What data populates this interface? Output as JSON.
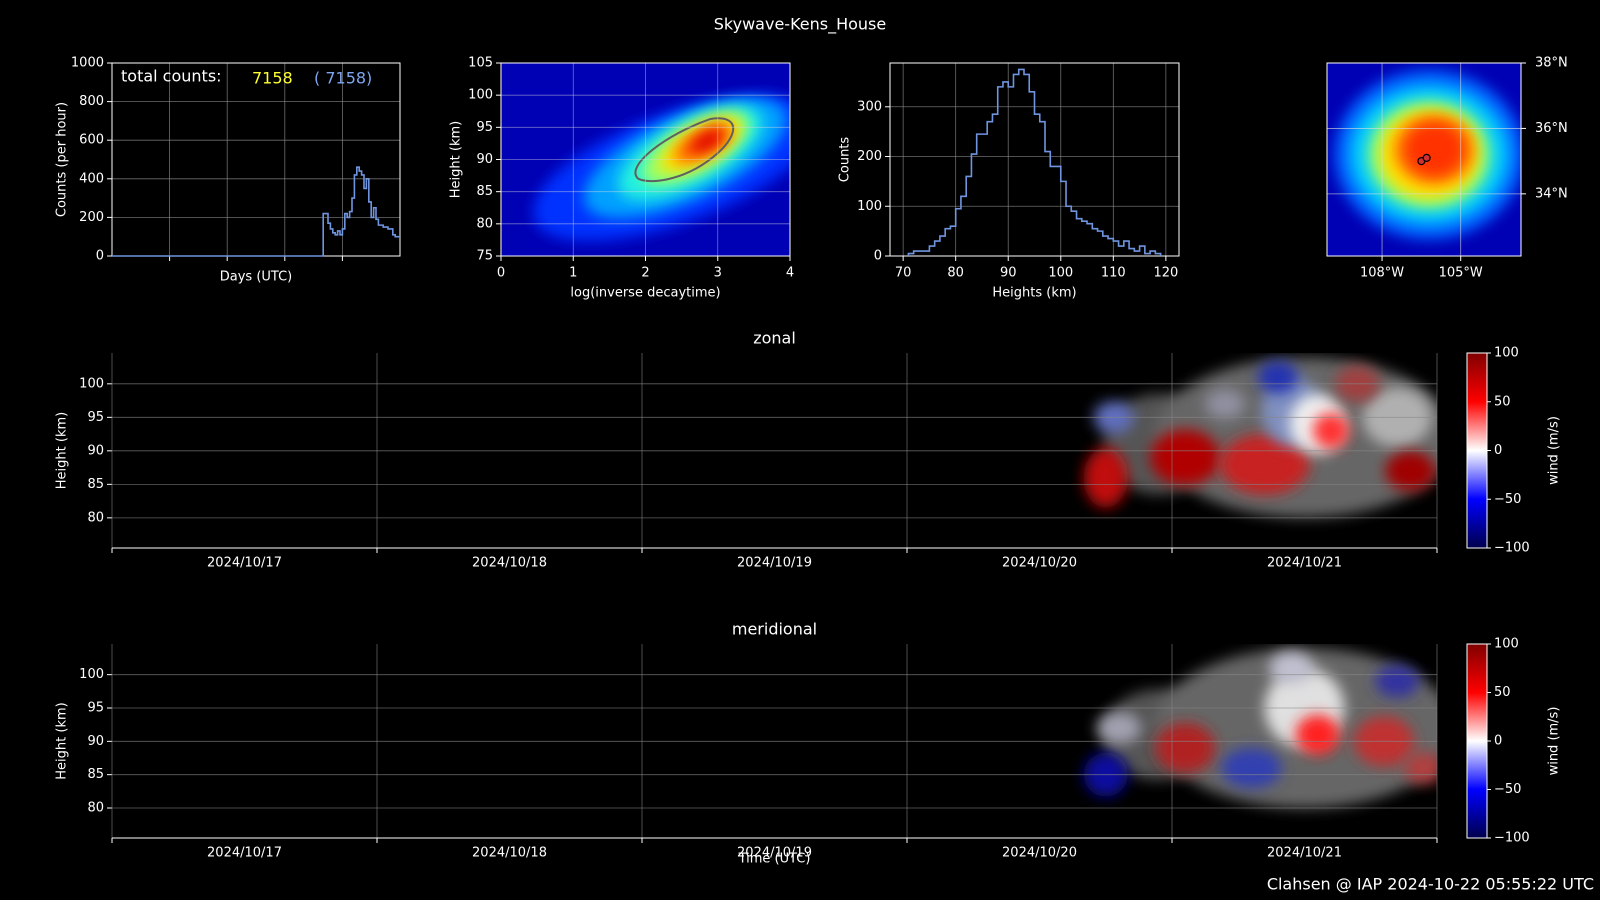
{
  "title": "Skywave-Kens_House",
  "footer": "Clahsen @ IAP 2024-10-22 05:55:22 UTC",
  "chart_data": [
    {
      "type": "step",
      "xlabel": "Days (UTC)",
      "ylabel": "Counts (per hour)",
      "total_label": "total counts:",
      "total": "7158",
      "total_all": "(  7158)",
      "color": "#6f95e0",
      "x": [
        0,
        88,
        89,
        90,
        91,
        92,
        93,
        94,
        95,
        96,
        97,
        98,
        99,
        100,
        101,
        102,
        103,
        104,
        105,
        106,
        107,
        108,
        109,
        110,
        111,
        112,
        113,
        114,
        115,
        116,
        117,
        118,
        119
      ],
      "values": [
        0,
        220,
        220,
        170,
        140,
        120,
        110,
        130,
        110,
        140,
        220,
        200,
        230,
        300,
        420,
        460,
        440,
        420,
        350,
        400,
        280,
        200,
        250,
        190,
        160,
        160,
        150,
        150,
        140,
        140,
        110,
        100,
        100
      ],
      "xlim": [
        0,
        120
      ],
      "xticks": [
        24,
        48,
        72,
        96
      ],
      "ylim": [
        0,
        1000
      ],
      "yticks": [
        0,
        200,
        400,
        600,
        800,
        1000
      ],
      "grid": true
    },
    {
      "type": "heatmap",
      "xlabel": "log(inverse decaytime)",
      "ylabel": "Height (km)",
      "xlim": [
        0,
        4
      ],
      "xticks": [
        0,
        1,
        2,
        3,
        4
      ],
      "ylim": [
        75,
        105
      ],
      "yticks": [
        75,
        80,
        85,
        90,
        95,
        100,
        105
      ],
      "grid": true
    },
    {
      "type": "histogram",
      "xlabel": "Heights (km)",
      "ylabel": "Counts",
      "color": "#6f95e0",
      "bins": [
        71,
        72,
        73,
        74,
        75,
        76,
        77,
        78,
        79,
        80,
        81,
        82,
        83,
        84,
        85,
        86,
        87,
        88,
        89,
        90,
        91,
        92,
        93,
        94,
        95,
        96,
        97,
        98,
        99,
        100,
        101,
        102,
        103,
        104,
        105,
        106,
        107,
        108,
        109,
        110,
        111,
        112,
        113,
        114,
        115,
        116,
        117,
        118,
        119
      ],
      "values": [
        5,
        10,
        10,
        10,
        20,
        30,
        40,
        55,
        60,
        95,
        120,
        160,
        205,
        245,
        245,
        270,
        285,
        340,
        350,
        340,
        365,
        375,
        365,
        330,
        285,
        270,
        210,
        180,
        180,
        150,
        100,
        90,
        75,
        70,
        65,
        55,
        50,
        40,
        35,
        30,
        20,
        30,
        15,
        10,
        20,
        5,
        10,
        5
      ],
      "xlim": [
        67.5,
        122.5
      ],
      "xticks": [
        70,
        80,
        90,
        100,
        110,
        120
      ],
      "ylim": [
        0,
        388
      ],
      "yticks": [
        0,
        100,
        200,
        300
      ],
      "grid": true
    },
    {
      "type": "map",
      "color": "#d03030",
      "x": [
        -106.5,
        -106.3
      ],
      "y": [
        35.0,
        35.1
      ],
      "xlim": [
        -110.1,
        -102.7
      ],
      "xticks": [
        {
          "value": -108,
          "label": "108°W"
        },
        {
          "value": -105,
          "label": "105°W"
        }
      ],
      "ylim": [
        32.1,
        38
      ],
      "yticks": [
        {
          "value": 34,
          "label": "34°N"
        },
        {
          "value": 36,
          "label": "36°N"
        },
        {
          "value": 38,
          "label": "38°N"
        }
      ],
      "grid": true
    },
    {
      "type": "wind",
      "title": "zonal",
      "ylabel": "Height (km)",
      "categories": [
        "2024/10/17",
        "2024/10/18",
        "2024/10/19",
        "2024/10/20",
        "2024/10/21"
      ],
      "ylim": [
        75.5,
        104.6
      ],
      "yticks": [
        80,
        85,
        90,
        95,
        100
      ],
      "clim": [
        -100,
        100
      ],
      "cticks": [
        {
          "value": -100,
          "label": "−100"
        },
        {
          "value": -50,
          "label": "−50"
        },
        0,
        50,
        100
      ],
      "clabel": "wind (m/s)",
      "grid": true
    },
    {
      "type": "wind",
      "title": "meridional",
      "ylabel": "Height (km)",
      "xlabel": "Time (UTC)",
      "categories": [
        "2024/10/17",
        "2024/10/18",
        "2024/10/19",
        "2024/10/20",
        "2024/10/21"
      ],
      "ylim": [
        75.5,
        104.6
      ],
      "yticks": [
        80,
        85,
        90,
        95,
        100
      ],
      "clim": [
        -100,
        100
      ],
      "cticks": [
        {
          "value": -100,
          "label": "−100"
        },
        {
          "value": -50,
          "label": "−50"
        },
        0,
        50,
        100
      ],
      "clabel": "wind (m/s)",
      "grid": true
    }
  ]
}
